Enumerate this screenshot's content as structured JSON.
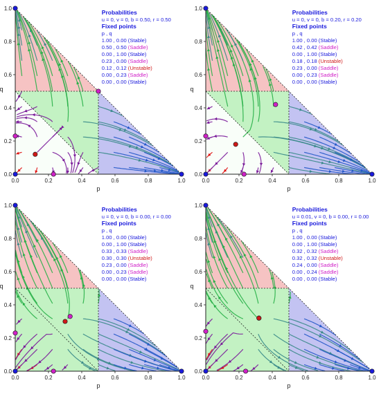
{
  "chart_data": [
    {
      "type": "phase-portrait",
      "xlabel": "p",
      "ylabel": "q",
      "xlim": [
        0,
        1
      ],
      "ylim": [
        0,
        1
      ],
      "xticks": [
        "0.0",
        "0.2",
        "0.4",
        "0.6",
        "0.8",
        "1.0"
      ],
      "yticks": [
        "0.0",
        "0.2",
        "0.4",
        "0.6",
        "0.8",
        "1.0"
      ],
      "legend_title": "Probabilities",
      "params": "u = 0, v = 0, b = 0.50, r = 0.50",
      "fixed_title": "Fixed points",
      "fixed_header": "p      ,  q",
      "fixed_points": [
        {
          "p": 1.0,
          "q": 0.0,
          "coord": "1.00 , 0.00",
          "type": "(Stable)"
        },
        {
          "p": 0.5,
          "q": 0.5,
          "coord": "0.50 , 0.50",
          "type": "(Saddle)"
        },
        {
          "p": 0.0,
          "q": 1.0,
          "coord": "0.00 , 1.00",
          "type": "(Stable)"
        },
        {
          "p": 0.23,
          "q": 0.0,
          "coord": "0.23 , 0.00",
          "type": "(Saddle)"
        },
        {
          "p": 0.12,
          "q": 0.12,
          "coord": "0.12 , 0.12",
          "type": "(Unstable)"
        },
        {
          "p": 0.0,
          "q": 0.23,
          "coord": "0.00 , 0.23",
          "type": "(Saddle)"
        },
        {
          "p": 0.0,
          "q": 0.0,
          "coord": "0.00 , 0.00",
          "type": "(Stable)"
        }
      ]
    },
    {
      "type": "phase-portrait",
      "xlabel": "p",
      "ylabel": "q",
      "xlim": [
        0,
        1
      ],
      "ylim": [
        0,
        1
      ],
      "xticks": [
        "0.0",
        "0.2",
        "0.4",
        "0.6",
        "0.8",
        "1.0"
      ],
      "yticks": [
        "0.0",
        "0.2",
        "0.4",
        "0.6",
        "0.8",
        "1.0"
      ],
      "legend_title": "Probabilities",
      "params": "u = 0, v = 0, b = 0.20, r = 0.20",
      "fixed_title": "Fixed points",
      "fixed_header": "p      ,  q",
      "fixed_points": [
        {
          "p": 1.0,
          "q": 0.0,
          "coord": "1.00 , 0.00",
          "type": "(Stable)"
        },
        {
          "p": 0.42,
          "q": 0.42,
          "coord": "0.42 , 0.42",
          "type": "(Saddle)"
        },
        {
          "p": 0.0,
          "q": 1.0,
          "coord": "0.00 , 1.00",
          "type": "(Stable)"
        },
        {
          "p": 0.18,
          "q": 0.18,
          "coord": "0.18 , 0.18",
          "type": "(Unstable)"
        },
        {
          "p": 0.23,
          "q": 0.0,
          "coord": "0.23 , 0.00",
          "type": "(Saddle)"
        },
        {
          "p": 0.0,
          "q": 0.23,
          "coord": "0.00 , 0.23",
          "type": "(Saddle)"
        },
        {
          "p": 0.0,
          "q": 0.0,
          "coord": "0.00 , 0.00",
          "type": "(Stable)"
        }
      ]
    },
    {
      "type": "phase-portrait",
      "xlabel": "p",
      "ylabel": "q",
      "xlim": [
        0,
        1
      ],
      "ylim": [
        0,
        1
      ],
      "xticks": [
        "0.0",
        "0.2",
        "0.4",
        "0.6",
        "0.8",
        "1.0"
      ],
      "yticks": [
        "0.0",
        "0.2",
        "0.4",
        "0.6",
        "0.8",
        "1.0"
      ],
      "legend_title": "Probabilities",
      "params": "u = 0, v = 0, b = 0.00, r = 0.00",
      "fixed_title": "Fixed points",
      "fixed_header": "p      ,  q",
      "fixed_points": [
        {
          "p": 1.0,
          "q": 0.0,
          "coord": "1.00 , 0.00",
          "type": "(Stable)"
        },
        {
          "p": 0.0,
          "q": 1.0,
          "coord": "0.00 , 1.00",
          "type": "(Stable)"
        },
        {
          "p": 0.33,
          "q": 0.33,
          "coord": "0.33 , 0.33",
          "type": "(Saddle)"
        },
        {
          "p": 0.3,
          "q": 0.3,
          "coord": "0.30 , 0.30",
          "type": "(Unstable)"
        },
        {
          "p": 0.23,
          "q": 0.0,
          "coord": "0.23 , 0.00",
          "type": "(Saddle)"
        },
        {
          "p": 0.0,
          "q": 0.23,
          "coord": "0.00 , 0.23",
          "type": "(Saddle)"
        },
        {
          "p": 0.0,
          "q": 0.0,
          "coord": "0.00 , 0.00",
          "type": "(Stable)"
        }
      ]
    },
    {
      "type": "phase-portrait",
      "xlabel": "p",
      "ylabel": "q",
      "xlim": [
        0,
        1
      ],
      "ylim": [
        0,
        1
      ],
      "xticks": [
        "0.0",
        "0.2",
        "0.4",
        "0.6",
        "0.8",
        "1.0"
      ],
      "yticks": [
        "0.0",
        "0.2",
        "0.4",
        "0.6",
        "0.8",
        "1.0"
      ],
      "legend_title": "Probabilities",
      "params": "u = 0.01, v = 0, b = 0.00, r = 0.00",
      "fixed_title": "Fixed points",
      "fixed_header": "p      ,  q",
      "fixed_points": [
        {
          "p": 1.0,
          "q": 0.0,
          "coord": "1.00 , 0.00",
          "type": "(Stable)"
        },
        {
          "p": 0.0,
          "q": 1.0,
          "coord": "0.00 , 1.00",
          "type": "(Stable)"
        },
        {
          "p": 0.32,
          "q": 0.32,
          "coord": "0.32 , 0.32",
          "type": "(Saddle)"
        },
        {
          "p": 0.32,
          "q": 0.32,
          "coord": "0.32 , 0.32",
          "type": "(Unstable)"
        },
        {
          "p": 0.24,
          "q": 0.0,
          "coord": "0.24 , 0.00",
          "type": "(Saddle)"
        },
        {
          "p": 0.0,
          "q": 0.24,
          "coord": "0.00 , 0.24",
          "type": "(Saddle)"
        },
        {
          "p": 0.0,
          "q": 0.0,
          "coord": "0.00 , 0.00",
          "type": "(Stable)"
        }
      ]
    }
  ],
  "colors": {
    "stable": "#1a1adc",
    "saddle": "#d020c8",
    "unstable": "#d01818",
    "region_top": "#f4b8b8",
    "region_mid": "#b8f0b8",
    "region_right": "#b8b8f0",
    "stream_red": "#e01010",
    "stream_purple": "#7a1a9a",
    "stream_blue": "#2458c8",
    "stream_green": "#28b048",
    "stream_teal": "#3a8a8a"
  }
}
